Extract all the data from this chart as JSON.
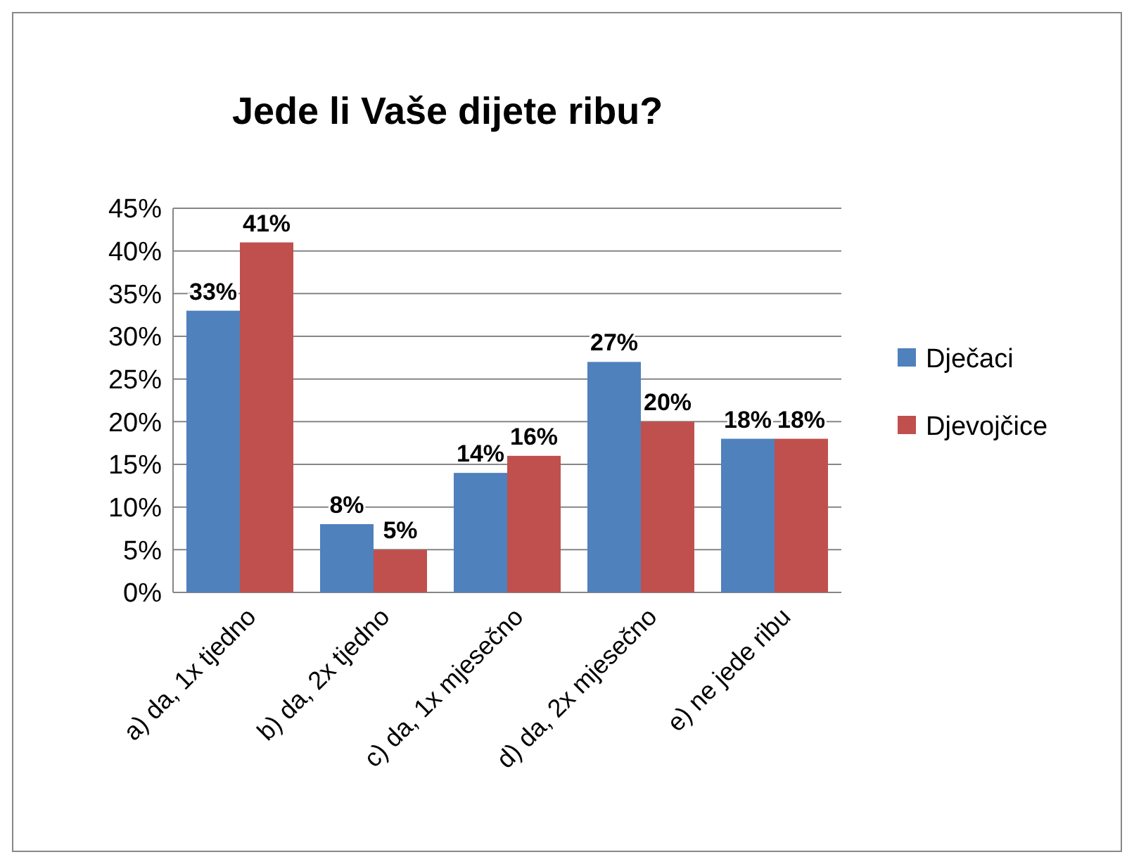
{
  "chart_data": {
    "type": "bar",
    "title": "Jede li Vaše dijete ribu?",
    "categories": [
      "a) da, 1x tjedno",
      "b) da, 2x tjedno",
      "c) da, 1x mjesečno",
      "d) da, 2x mjesečno",
      "e) ne jede ribu"
    ],
    "series": [
      {
        "name": "Dječaci",
        "color": "#4f81bd",
        "values": [
          33,
          8,
          14,
          27,
          18
        ],
        "value_labels": [
          "33%",
          "8%",
          "14%",
          "27%",
          "18%"
        ]
      },
      {
        "name": "Djevojčice",
        "color": "#c0504d",
        "values": [
          41,
          5,
          16,
          20,
          18
        ],
        "value_labels": [
          "41%",
          "5%",
          "16%",
          "20%",
          "18%"
        ]
      }
    ],
    "ylim": [
      0,
      45
    ],
    "yticks": [
      {
        "value": 0,
        "label": "0%"
      },
      {
        "value": 5,
        "label": "5%"
      },
      {
        "value": 10,
        "label": "10%"
      },
      {
        "value": 15,
        "label": "15%"
      },
      {
        "value": 20,
        "label": "20%"
      },
      {
        "value": 25,
        "label": "25%"
      },
      {
        "value": 30,
        "label": "30%"
      },
      {
        "value": 35,
        "label": "35%"
      },
      {
        "value": 40,
        "label": "40%"
      },
      {
        "value": 45,
        "label": "45%"
      }
    ],
    "grid": "y",
    "legend": "right"
  }
}
